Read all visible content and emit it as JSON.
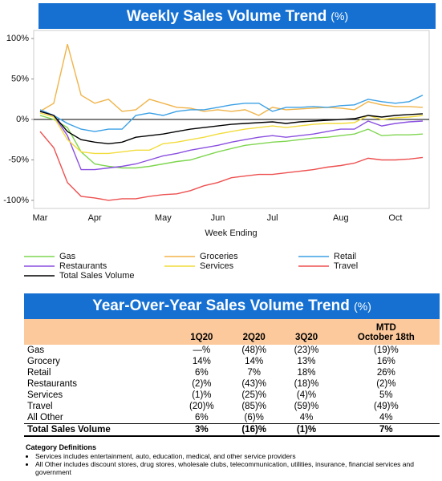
{
  "chart_data": {
    "type": "line",
    "title": "Weekly Sales Volume Trend",
    "title_unit": "(%)",
    "x_label": "Week Ending",
    "categories": [
      "Mar",
      null,
      null,
      null,
      "Apr",
      null,
      null,
      null,
      null,
      "May",
      null,
      null,
      null,
      "Jun",
      null,
      null,
      null,
      "Jul",
      null,
      null,
      null,
      null,
      "Aug",
      null,
      null,
      null,
      "Oct",
      null,
      null
    ],
    "ylim": [
      -110,
      110
    ],
    "yticks": [
      {
        "value": -100,
        "label": "-100%"
      },
      {
        "value": -50,
        "label": "-50%"
      },
      {
        "value": 0,
        "label": "0%"
      },
      {
        "value": 50,
        "label": "50%"
      },
      {
        "value": 100,
        "label": "100%"
      }
    ],
    "zero_line": true,
    "legend": "bottom",
    "series": [
      {
        "name": "Gas",
        "color": "#7fd650",
        "values": [
          5,
          0,
          -10,
          -40,
          -55,
          -58,
          -60,
          -60,
          -58,
          -55,
          -52,
          -50,
          -45,
          -40,
          -36,
          -32,
          -30,
          -28,
          -27,
          -25,
          -23,
          -22,
          -20,
          -18,
          -12,
          -20,
          -19,
          -19,
          -18
        ]
      },
      {
        "name": "Groceries",
        "color": "#f0b449",
        "values": [
          10,
          20,
          93,
          30,
          20,
          25,
          10,
          12,
          25,
          20,
          15,
          14,
          10,
          12,
          10,
          12,
          5,
          15,
          12,
          13,
          14,
          15,
          14,
          12,
          22,
          18,
          16,
          16,
          15
        ]
      },
      {
        "name": "Retail",
        "color": "#3ba0e6",
        "values": [
          12,
          5,
          -5,
          -12,
          -15,
          -12,
          -12,
          5,
          8,
          5,
          10,
          12,
          12,
          15,
          18,
          20,
          20,
          10,
          15,
          15,
          16,
          15,
          17,
          18,
          25,
          22,
          20,
          22,
          30
        ]
      },
      {
        "name": "Restaurants",
        "color": "#8a4fe0",
        "values": [
          10,
          5,
          -20,
          -62,
          -62,
          -60,
          -58,
          -55,
          -50,
          -45,
          -42,
          -38,
          -35,
          -32,
          -28,
          -25,
          -22,
          -20,
          -22,
          -20,
          -18,
          -15,
          -12,
          -12,
          -2,
          -8,
          -5,
          -3,
          -2
        ]
      },
      {
        "name": "Services",
        "color": "#f2dc3c",
        "values": [
          8,
          3,
          -25,
          -40,
          -42,
          -42,
          -40,
          -38,
          -38,
          -30,
          -28,
          -25,
          -22,
          -18,
          -15,
          -12,
          -10,
          -8,
          -10,
          -8,
          -6,
          -5,
          -5,
          -4,
          5,
          0,
          2,
          3,
          5
        ]
      },
      {
        "name": "Travel",
        "color": "#ee5050",
        "values": [
          -15,
          -35,
          -78,
          -95,
          -97,
          -100,
          -98,
          -98,
          -95,
          -93,
          -92,
          -88,
          -82,
          -78,
          -72,
          -70,
          -68,
          -68,
          -66,
          -64,
          -62,
          -59,
          -57,
          -54,
          -48,
          -50,
          -50,
          -49,
          -47
        ]
      },
      {
        "name": "Total Sales Volume",
        "color": "#000000",
        "values": [
          10,
          5,
          -15,
          -25,
          -28,
          -30,
          -28,
          -22,
          -20,
          -18,
          -15,
          -12,
          -10,
          -8,
          -6,
          -5,
          -4,
          -3,
          -5,
          -3,
          -2,
          -1,
          0,
          1,
          5,
          3,
          5,
          6,
          7
        ]
      }
    ]
  },
  "table": {
    "title": "Year-Over-Year Sales Volume Trend",
    "title_unit": "(%)",
    "columns": [
      "1Q20",
      "2Q20",
      "3Q20",
      "MTD\nOctober 18th"
    ],
    "rows": [
      [
        "Gas",
        "—%",
        "(48)%",
        "(23)%",
        "(19)%"
      ],
      [
        "Grocery",
        "14%",
        "14%",
        "13%",
        "16%"
      ],
      [
        "Retail",
        "6%",
        "7%",
        "18%",
        "26%"
      ],
      [
        "Restaurants",
        "(2)%",
        "(43)%",
        "(18)%",
        "(2)%"
      ],
      [
        "Services",
        "(1)%",
        "(25)%",
        "(4)%",
        "5%"
      ],
      [
        "Travel",
        "(20)%",
        "(85)%",
        "(59)%",
        "(49)%"
      ],
      [
        "All Other",
        "6%",
        "(6)%",
        "4%",
        "4%"
      ]
    ],
    "total": [
      "Total Sales Volume",
      "3%",
      "(16)%",
      "(1)%",
      "7%"
    ]
  },
  "notes": {
    "title": "Category Definitions",
    "items": [
      "Services includes entertainment, auto, education, medical, and other service providers",
      "All Other includes discount stores, drug stores, wholesale clubs, telecommunication, utilities, insurance, financial services and government"
    ]
  }
}
